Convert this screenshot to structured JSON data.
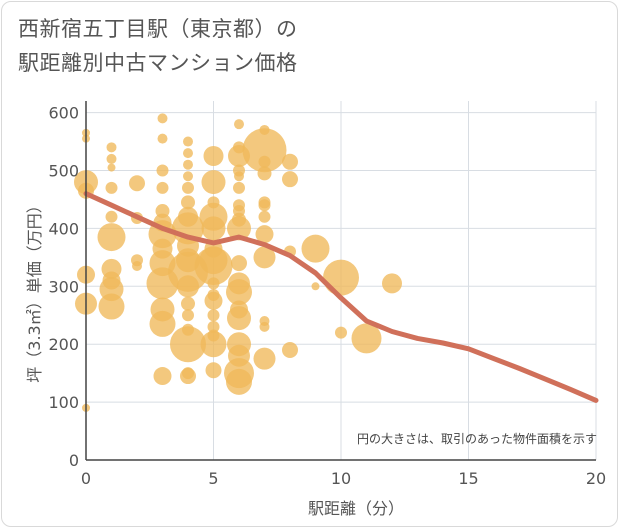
{
  "title_line1": "西新宿五丁目駅（東京都）の",
  "title_line2": "駅距離別中古マンション価格",
  "chart_data": {
    "type": "scatter",
    "xlabel": "駅距離（分）",
    "ylabel": "坪（3.3㎡）単価（万円）",
    "xlim": [
      0,
      20
    ],
    "ylim": [
      0,
      620
    ],
    "x_ticks": [
      0,
      5,
      10,
      15,
      20
    ],
    "y_ticks": [
      0,
      100,
      200,
      300,
      400,
      500,
      600
    ],
    "grid": true,
    "note": "円の大きさは、取引のあった物件面積を示す",
    "colors": {
      "bubble": "#f0b95a",
      "line": "#d0705a",
      "grid": "#d8dde3"
    },
    "bubbles": [
      {
        "x": 0,
        "y": 565,
        "s": 4
      },
      {
        "x": 0,
        "y": 555,
        "s": 4
      },
      {
        "x": 0,
        "y": 480,
        "s": 12
      },
      {
        "x": 0,
        "y": 465,
        "s": 8
      },
      {
        "x": 0,
        "y": 320,
        "s": 9
      },
      {
        "x": 0,
        "y": 270,
        "s": 11
      },
      {
        "x": 0,
        "y": 90,
        "s": 4
      },
      {
        "x": 1,
        "y": 540,
        "s": 5
      },
      {
        "x": 1,
        "y": 520,
        "s": 5
      },
      {
        "x": 1,
        "y": 505,
        "s": 4
      },
      {
        "x": 1,
        "y": 470,
        "s": 6
      },
      {
        "x": 1,
        "y": 420,
        "s": 6
      },
      {
        "x": 1,
        "y": 385,
        "s": 14
      },
      {
        "x": 1,
        "y": 330,
        "s": 10
      },
      {
        "x": 1,
        "y": 310,
        "s": 9
      },
      {
        "x": 1,
        "y": 295,
        "s": 12
      },
      {
        "x": 1,
        "y": 265,
        "s": 13
      },
      {
        "x": 2,
        "y": 478,
        "s": 8
      },
      {
        "x": 2,
        "y": 418,
        "s": 6
      },
      {
        "x": 2,
        "y": 345,
        "s": 6
      },
      {
        "x": 2,
        "y": 335,
        "s": 5
      },
      {
        "x": 3,
        "y": 590,
        "s": 5
      },
      {
        "x": 3,
        "y": 555,
        "s": 5
      },
      {
        "x": 3,
        "y": 500,
        "s": 6
      },
      {
        "x": 3,
        "y": 470,
        "s": 6
      },
      {
        "x": 3,
        "y": 430,
        "s": 7
      },
      {
        "x": 3,
        "y": 410,
        "s": 9
      },
      {
        "x": 3,
        "y": 390,
        "s": 14
      },
      {
        "x": 3,
        "y": 365,
        "s": 10
      },
      {
        "x": 3,
        "y": 340,
        "s": 13
      },
      {
        "x": 3,
        "y": 305,
        "s": 16
      },
      {
        "x": 3,
        "y": 260,
        "s": 12
      },
      {
        "x": 3,
        "y": 235,
        "s": 13
      },
      {
        "x": 3,
        "y": 145,
        "s": 9
      },
      {
        "x": 4,
        "y": 550,
        "s": 5
      },
      {
        "x": 4,
        "y": 530,
        "s": 5
      },
      {
        "x": 4,
        "y": 510,
        "s": 5
      },
      {
        "x": 4,
        "y": 490,
        "s": 5
      },
      {
        "x": 4,
        "y": 470,
        "s": 6
      },
      {
        "x": 4,
        "y": 445,
        "s": 7
      },
      {
        "x": 4,
        "y": 420,
        "s": 10
      },
      {
        "x": 4,
        "y": 400,
        "s": 16
      },
      {
        "x": 4,
        "y": 370,
        "s": 11
      },
      {
        "x": 4,
        "y": 345,
        "s": 12
      },
      {
        "x": 4,
        "y": 325,
        "s": 20
      },
      {
        "x": 4,
        "y": 300,
        "s": 11
      },
      {
        "x": 4,
        "y": 270,
        "s": 7
      },
      {
        "x": 4,
        "y": 250,
        "s": 6
      },
      {
        "x": 4,
        "y": 225,
        "s": 6
      },
      {
        "x": 4,
        "y": 200,
        "s": 18
      },
      {
        "x": 4,
        "y": 150,
        "s": 6
      },
      {
        "x": 4,
        "y": 145,
        "s": 8
      },
      {
        "x": 5,
        "y": 525,
        "s": 10
      },
      {
        "x": 5,
        "y": 480,
        "s": 12
      },
      {
        "x": 5,
        "y": 445,
        "s": 6
      },
      {
        "x": 5,
        "y": 420,
        "s": 14
      },
      {
        "x": 5,
        "y": 400,
        "s": 12
      },
      {
        "x": 5,
        "y": 365,
        "s": 9
      },
      {
        "x": 5,
        "y": 345,
        "s": 14
      },
      {
        "x": 5,
        "y": 335,
        "s": 19
      },
      {
        "x": 5,
        "y": 305,
        "s": 6
      },
      {
        "x": 5,
        "y": 285,
        "s": 6
      },
      {
        "x": 5,
        "y": 275,
        "s": 9
      },
      {
        "x": 5,
        "y": 250,
        "s": 6
      },
      {
        "x": 5,
        "y": 230,
        "s": 6
      },
      {
        "x": 5,
        "y": 215,
        "s": 6
      },
      {
        "x": 5,
        "y": 200,
        "s": 13
      },
      {
        "x": 5,
        "y": 155,
        "s": 8
      },
      {
        "x": 6,
        "y": 580,
        "s": 5
      },
      {
        "x": 6,
        "y": 540,
        "s": 6
      },
      {
        "x": 6,
        "y": 525,
        "s": 11
      },
      {
        "x": 6,
        "y": 500,
        "s": 6
      },
      {
        "x": 6,
        "y": 490,
        "s": 5
      },
      {
        "x": 6,
        "y": 470,
        "s": 6
      },
      {
        "x": 6,
        "y": 440,
        "s": 6
      },
      {
        "x": 6,
        "y": 430,
        "s": 6
      },
      {
        "x": 6,
        "y": 415,
        "s": 7
      },
      {
        "x": 6,
        "y": 400,
        "s": 12
      },
      {
        "x": 6,
        "y": 340,
        "s": 8
      },
      {
        "x": 6,
        "y": 305,
        "s": 11
      },
      {
        "x": 6,
        "y": 290,
        "s": 13
      },
      {
        "x": 6,
        "y": 260,
        "s": 9
      },
      {
        "x": 6,
        "y": 245,
        "s": 12
      },
      {
        "x": 6,
        "y": 200,
        "s": 12
      },
      {
        "x": 6,
        "y": 180,
        "s": 11
      },
      {
        "x": 6,
        "y": 150,
        "s": 15
      },
      {
        "x": 6,
        "y": 135,
        "s": 13
      },
      {
        "x": 7,
        "y": 570,
        "s": 5
      },
      {
        "x": 7,
        "y": 535,
        "s": 22
      },
      {
        "x": 7,
        "y": 515,
        "s": 6
      },
      {
        "x": 7,
        "y": 495,
        "s": 7
      },
      {
        "x": 7,
        "y": 445,
        "s": 6
      },
      {
        "x": 7,
        "y": 440,
        "s": 6
      },
      {
        "x": 7,
        "y": 420,
        "s": 6
      },
      {
        "x": 7,
        "y": 390,
        "s": 9
      },
      {
        "x": 7,
        "y": 350,
        "s": 11
      },
      {
        "x": 7,
        "y": 240,
        "s": 5
      },
      {
        "x": 7,
        "y": 230,
        "s": 5
      },
      {
        "x": 7,
        "y": 175,
        "s": 11
      },
      {
        "x": 8,
        "y": 515,
        "s": 8
      },
      {
        "x": 8,
        "y": 485,
        "s": 8
      },
      {
        "x": 8,
        "y": 360,
        "s": 6
      },
      {
        "x": 8,
        "y": 190,
        "s": 8
      },
      {
        "x": 9,
        "y": 365,
        "s": 14
      },
      {
        "x": 9,
        "y": 300,
        "s": 4
      },
      {
        "x": 10,
        "y": 315,
        "s": 18
      },
      {
        "x": 10,
        "y": 220,
        "s": 6
      },
      {
        "x": 11,
        "y": 210,
        "s": 15
      },
      {
        "x": 12,
        "y": 305,
        "s": 10
      }
    ],
    "line": {
      "x": [
        0,
        1,
        2,
        3,
        4,
        5,
        6,
        7,
        8,
        9,
        10,
        11,
        12,
        13,
        14,
        15,
        16,
        17,
        18,
        19,
        20
      ],
      "y": [
        460,
        440,
        420,
        400,
        385,
        375,
        385,
        372,
        353,
        323,
        280,
        240,
        222,
        210,
        202,
        192,
        175,
        158,
        140,
        122,
        103
      ]
    }
  }
}
